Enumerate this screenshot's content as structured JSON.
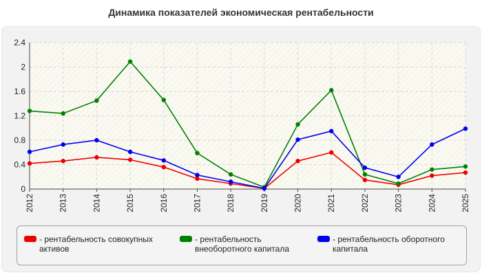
{
  "chart_data": {
    "type": "line",
    "title": "Динамика показателей экономическая рентабельности",
    "xlabel": "",
    "ylabel": "",
    "categories": [
      "2012",
      "2013",
      "2014",
      "2015",
      "2016",
      "2017",
      "2018",
      "2019",
      "2020",
      "2021",
      "2022",
      "2023",
      "2024",
      "2025"
    ],
    "ylim": [
      0,
      2.4
    ],
    "yticks": [
      "0",
      "0.4",
      "0.8",
      "1.2",
      "1.6",
      "2",
      "2.4"
    ],
    "grid": true,
    "legend_position": "bottom",
    "series": [
      {
        "name": "- рентабельность совокупных активов",
        "color": "#ee0000",
        "values": [
          0.42,
          0.46,
          0.52,
          0.48,
          0.36,
          0.17,
          0.09,
          0.01,
          0.46,
          0.6,
          0.15,
          0.07,
          0.22,
          0.27
        ]
      },
      {
        "name": "- рентабельность внеоборотного капитала",
        "color": "#008000",
        "values": [
          1.28,
          1.24,
          1.45,
          2.09,
          1.46,
          0.59,
          0.24,
          0.03,
          1.06,
          1.62,
          0.24,
          0.09,
          0.32,
          0.37
        ]
      },
      {
        "name": "- рентабельность оборотного капитала",
        "color": "#0000ee",
        "values": [
          0.61,
          0.73,
          0.8,
          0.61,
          0.47,
          0.23,
          0.12,
          0.01,
          0.81,
          0.95,
          0.35,
          0.2,
          0.73,
          0.99
        ]
      }
    ]
  }
}
